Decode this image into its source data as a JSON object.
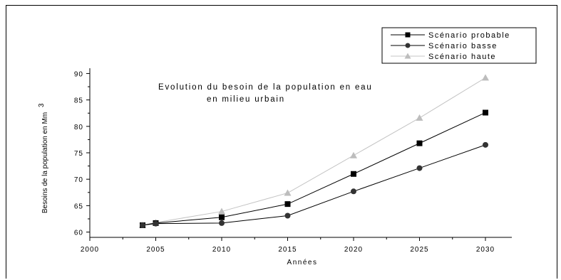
{
  "chart_data": {
    "type": "line",
    "title": "",
    "annotation_lines": [
      "Evolution du besoin de la population en eau",
      "en milieu urbain"
    ],
    "xlabel": "Années",
    "ylabel": "Besoins de la population en Mm",
    "ylabel_superscript": "3",
    "xlim": [
      2000,
      2032
    ],
    "ylim": [
      59,
      91
    ],
    "x_ticks": [
      2000,
      2005,
      2010,
      2015,
      2020,
      2025,
      2030
    ],
    "y_ticks": [
      60,
      65,
      70,
      75,
      80,
      85,
      90
    ],
    "grid": false,
    "legend_position": "top-right",
    "x": [
      2004,
      2005,
      2010,
      2015,
      2020,
      2025,
      2030
    ],
    "series": [
      {
        "name": "Scénario probable",
        "marker": "square",
        "color": "#000000",
        "line_color": "#000000",
        "values": [
          61.3,
          61.7,
          62.8,
          65.3,
          71.0,
          76.8,
          82.6
        ]
      },
      {
        "name": "Scénario basse",
        "marker": "circle",
        "color": "#333333",
        "line_color": "#000000",
        "values": [
          61.3,
          61.6,
          61.7,
          63.1,
          67.7,
          72.1,
          76.5
        ]
      },
      {
        "name": "Scénario haute",
        "marker": "triangle",
        "color": "#bdbdbd",
        "line_color": "#c4c4c4",
        "values": [
          61.3,
          61.8,
          63.9,
          67.4,
          74.5,
          81.6,
          89.2
        ]
      }
    ]
  }
}
